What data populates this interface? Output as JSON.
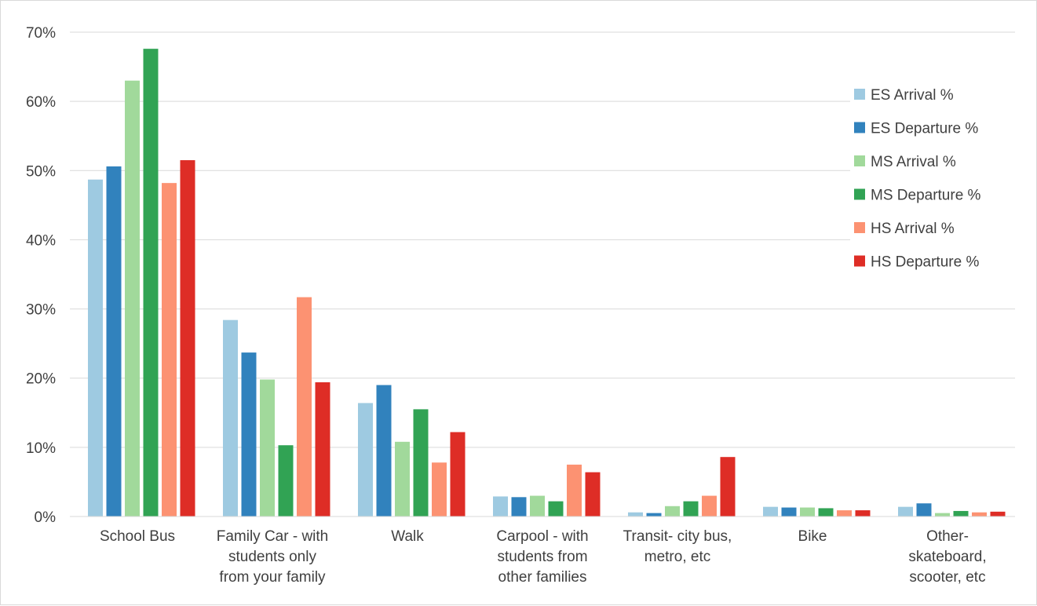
{
  "chart_data": {
    "type": "bar",
    "title": "",
    "xlabel": "",
    "ylabel": "",
    "ylim": [
      0,
      70
    ],
    "y_tick_step": 10,
    "y_tick_format": "percent",
    "grid": true,
    "legend_position": "right",
    "categories": [
      [
        "School Bus"
      ],
      [
        "Family Car - with",
        "students only",
        "from your family"
      ],
      [
        "Walk"
      ],
      [
        "Carpool - with",
        "students from",
        "other families"
      ],
      [
        "Transit- city bus,",
        "metro, etc"
      ],
      [
        "Bike"
      ],
      [
        "Other-",
        "skateboard,",
        "scooter, etc"
      ]
    ],
    "series": [
      {
        "name": "ES Arrival %",
        "color": "#9ecae1",
        "values": [
          48.7,
          28.4,
          16.4,
          2.9,
          0.6,
          1.4,
          1.4
        ]
      },
      {
        "name": "ES Departure %",
        "color": "#3182bd",
        "values": [
          50.6,
          23.7,
          19.0,
          2.8,
          0.5,
          1.3,
          1.9
        ]
      },
      {
        "name": "MS Arrival %",
        "color": "#a1d99b",
        "values": [
          63.0,
          19.8,
          10.8,
          3.0,
          1.5,
          1.3,
          0.5
        ]
      },
      {
        "name": "MS Departure %",
        "color": "#31a354",
        "values": [
          67.6,
          10.3,
          15.5,
          2.2,
          2.2,
          1.2,
          0.8
        ]
      },
      {
        "name": "HS Arrival %",
        "color": "#fc9272",
        "values": [
          48.2,
          31.7,
          7.8,
          7.5,
          3.0,
          0.9,
          0.6
        ]
      },
      {
        "name": "HS Departure %",
        "color": "#de2d26",
        "values": [
          51.5,
          19.4,
          12.2,
          6.4,
          8.6,
          0.9,
          0.7
        ]
      }
    ]
  }
}
